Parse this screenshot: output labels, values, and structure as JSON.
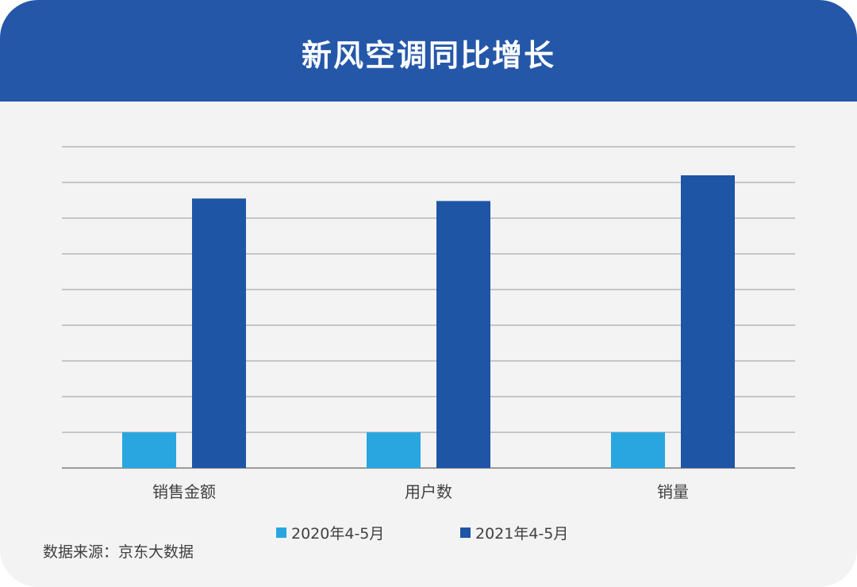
{
  "header": {
    "title": "新风空调同比增长"
  },
  "chart_data": {
    "type": "bar",
    "title": "新风空调同比增长",
    "categories": [
      "销售金额",
      "用户数",
      "销量"
    ],
    "series": [
      {
        "name": "2020年4-5月",
        "values": [
          1,
          1,
          1
        ],
        "color": "#29a6e0"
      },
      {
        "name": "2021年4-5月",
        "values": [
          7.55,
          7.48,
          8.2
        ],
        "color": "#1e55a5"
      }
    ],
    "ylim": [
      0,
      9
    ],
    "grid": true,
    "y_tick_labels_shown": false,
    "legend": "bottom"
  },
  "footer": {
    "source": "数据来源：京东大数据"
  }
}
